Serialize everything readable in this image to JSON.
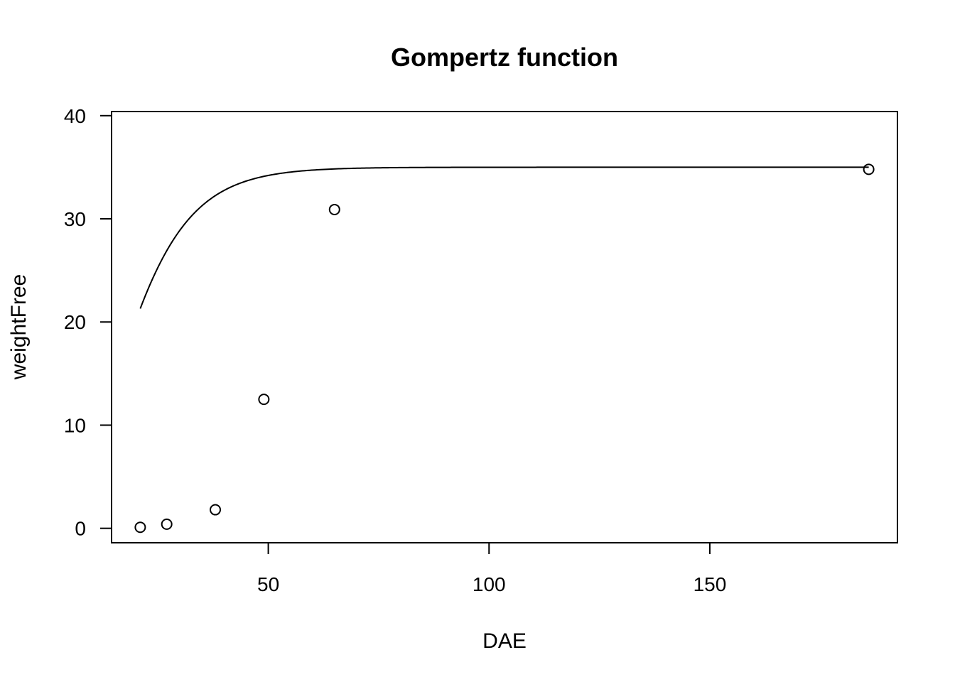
{
  "chart_data": {
    "type": "scatter",
    "title": "Gompertz function",
    "xlabel": "DAE",
    "ylabel": "weightFree",
    "xticks": [
      50,
      100,
      150
    ],
    "yticks": [
      0,
      10,
      20,
      30,
      40
    ],
    "xlim": [
      14.5,
      192.5
    ],
    "ylim": [
      -1.4,
      40.4
    ],
    "grid": false,
    "legend": "none",
    "series": [
      {
        "marker": "open-circle",
        "x": [
          21,
          27,
          38,
          49,
          65,
          186
        ],
        "y": [
          0.1,
          0.4,
          1.8,
          12.5,
          30.9,
          34.8
        ]
      }
    ],
    "fitted_curve": {
      "model": "gompertz",
      "asymptote": 35.0,
      "b": 4.6,
      "c": 0.106
    }
  }
}
